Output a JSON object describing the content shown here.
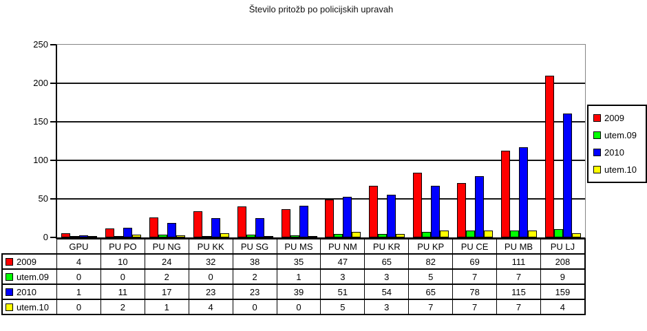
{
  "chart_data": {
    "type": "bar",
    "title": "Število pritožb po policijskih upravah",
    "categories": [
      "GPU",
      "PU PO",
      "PU NG",
      "PU KK",
      "PU SG",
      "PU MS",
      "PU NM",
      "PU KR",
      "PU KP",
      "PU CE",
      "PU MB",
      "PU LJ"
    ],
    "series": [
      {
        "name": "2009",
        "color": "#ff0000",
        "values": [
          4,
          10,
          24,
          32,
          38,
          35,
          47,
          65,
          82,
          69,
          111,
          208
        ]
      },
      {
        "name": "utem.09",
        "color": "#00ff00",
        "values": [
          0,
          0,
          2,
          0,
          2,
          1,
          3,
          3,
          5,
          7,
          7,
          9
        ]
      },
      {
        "name": "2010",
        "color": "#0000ff",
        "values": [
          1,
          11,
          17,
          23,
          23,
          39,
          51,
          54,
          65,
          78,
          115,
          159
        ]
      },
      {
        "name": "utem.10",
        "color": "#ffff00",
        "values": [
          0,
          2,
          1,
          4,
          0,
          0,
          5,
          3,
          7,
          7,
          7,
          4
        ]
      }
    ],
    "xlabel": "",
    "ylabel": "",
    "ylim": [
      0,
      250
    ],
    "yticks": [
      0,
      50,
      100,
      150,
      200,
      250
    ],
    "grid": true,
    "legend_position": "right",
    "plot_border_color": "#848484",
    "gridline_color": "#141414",
    "bar_outline_color": "#000000",
    "background_color": "#ffffff",
    "text_color": "#000000"
  }
}
